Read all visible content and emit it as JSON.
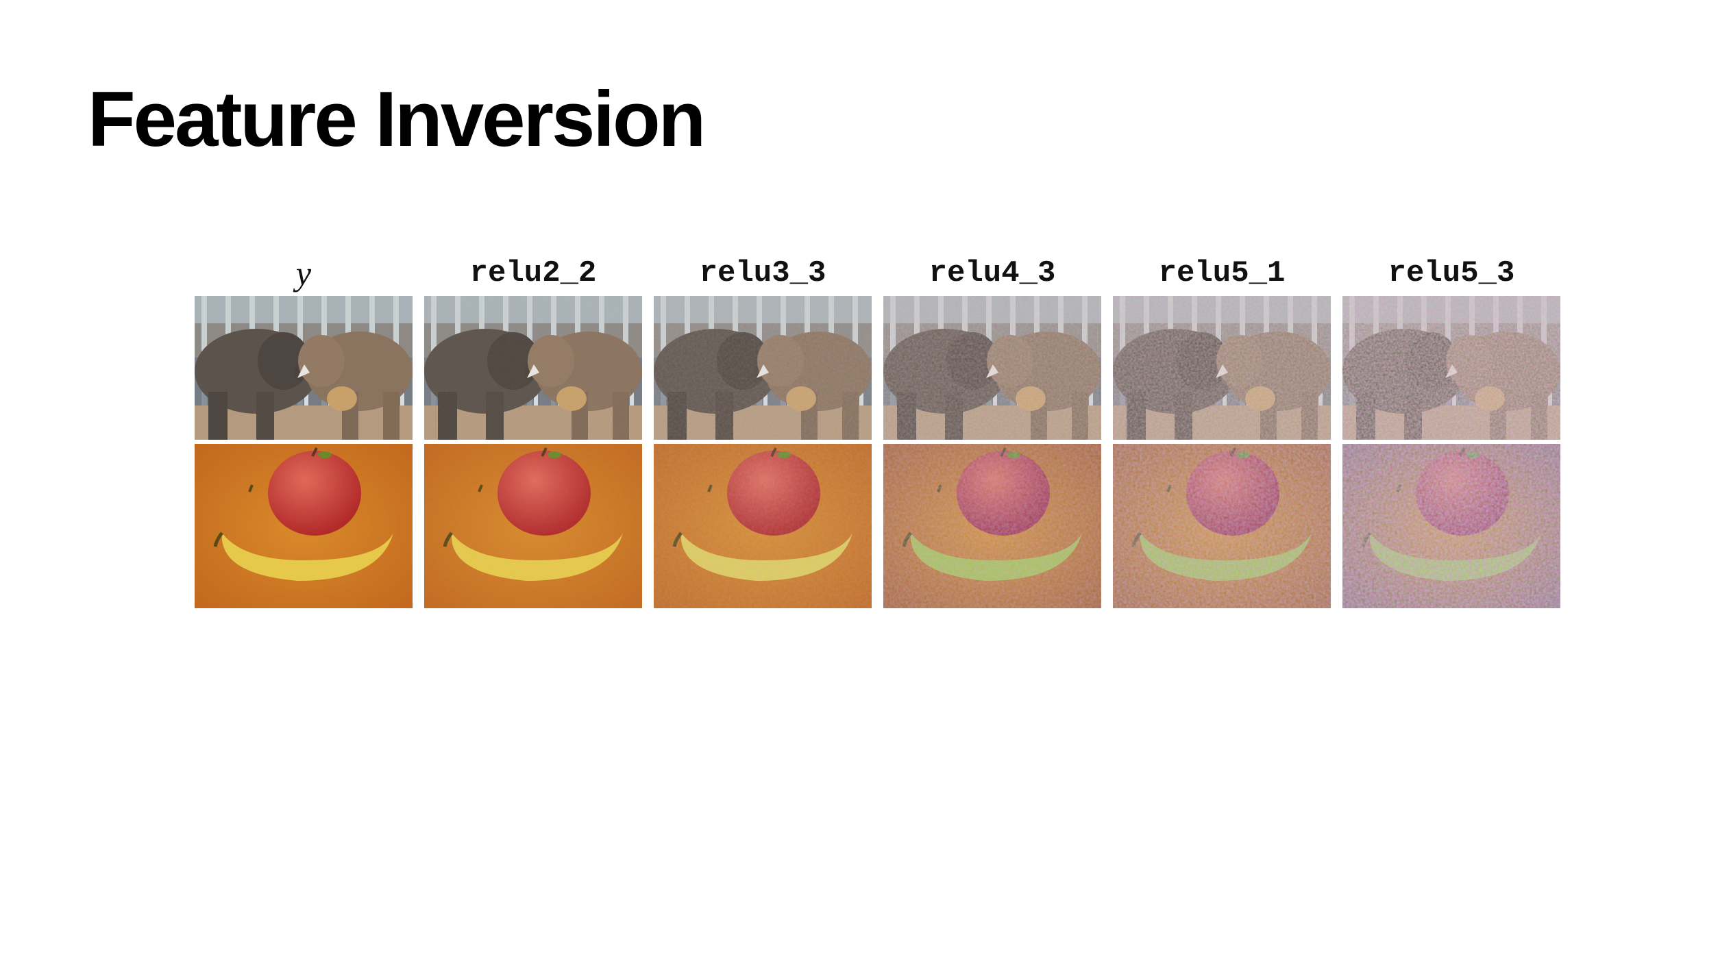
{
  "slide": {
    "title": "Feature Inversion"
  },
  "figure": {
    "columns": [
      {
        "label": "y",
        "noise": 0.0
      },
      {
        "label": "relu2_2",
        "noise": 0.05
      },
      {
        "label": "relu3_3",
        "noise": 0.2
      },
      {
        "label": "relu4_3",
        "noise": 0.45
      },
      {
        "label": "relu5_1",
        "noise": 0.65
      },
      {
        "label": "relu5_3",
        "noise": 0.9
      }
    ],
    "rows": [
      {
        "subject": "elephants"
      },
      {
        "subject": "apple and banana"
      }
    ]
  }
}
